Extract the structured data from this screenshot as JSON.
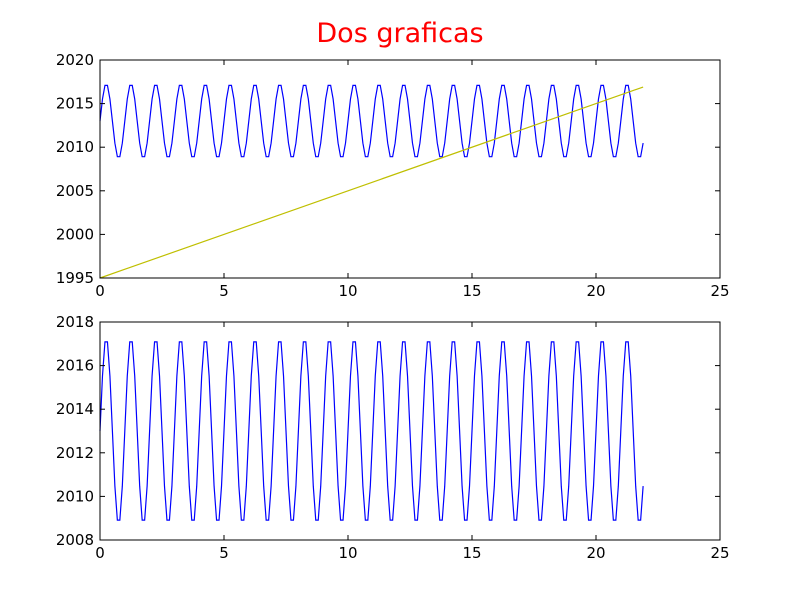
{
  "figure": {
    "title": "Dos graficas",
    "title_color": "#ff0000"
  },
  "chart_data": [
    {
      "type": "line",
      "title": "Dos graficas",
      "xlabel": "",
      "ylabel": "",
      "xlim": [
        0,
        25
      ],
      "ylim": [
        1995,
        2020
      ],
      "xticks": [
        "0",
        "5",
        "10",
        "15",
        "20",
        "25"
      ],
      "yticks": [
        "1995",
        "2000",
        "2005",
        "2010",
        "2015",
        "2020"
      ],
      "grid": false,
      "series": [
        {
          "color": "#0000ff",
          "kind": "sinusoid",
          "x_range": [
            0,
            21.9
          ],
          "x_step": 0.1,
          "center": 2013,
          "amplitude": 4.3,
          "period": 1.0,
          "phase_start_value": 2013.0
        },
        {
          "color": "#bfbf00",
          "kind": "linear",
          "points": [
            [
              0,
              1995.0
            ],
            [
              21.9,
              2016.9
            ]
          ]
        }
      ]
    },
    {
      "type": "line",
      "xlabel": "",
      "ylabel": "",
      "xlim": [
        0,
        25
      ],
      "ylim": [
        2008,
        2018
      ],
      "xticks": [
        "0",
        "5",
        "10",
        "15",
        "20",
        "25"
      ],
      "yticks": [
        "2008",
        "2010",
        "2012",
        "2014",
        "2016",
        "2018"
      ],
      "grid": false,
      "series": [
        {
          "color": "#0000ff",
          "kind": "sinusoid",
          "x_range": [
            0,
            21.9
          ],
          "x_step": 0.1,
          "center": 2013,
          "amplitude": 4.3,
          "period": 1.0,
          "phase_start_value": 2013.0
        }
      ]
    }
  ]
}
